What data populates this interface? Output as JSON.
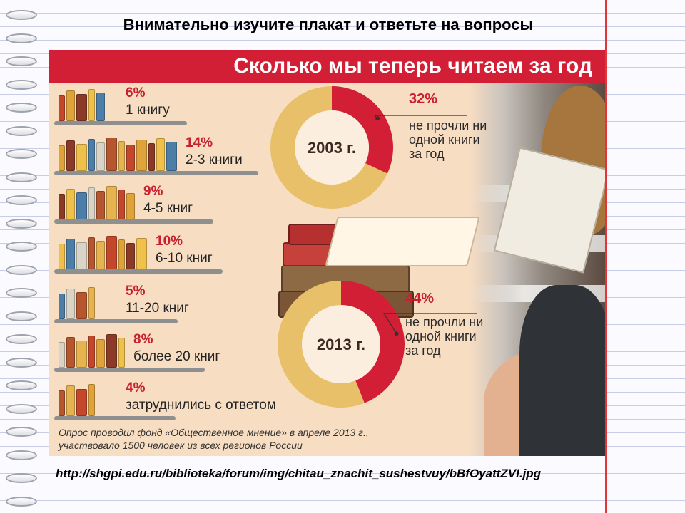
{
  "heading": "Внимательно изучите  плакат и ответьте  на вопросы",
  "poster": {
    "title": "Сколько мы теперь читаем за год",
    "footnote_line1": "Опрос проводил фонд «Общественное мнение» в апреле 2013 г.,",
    "footnote_line2": "участвовало 1500 человек из всех регионов России"
  },
  "url": "http://shgpi.edu.ru/biblioteka/forum/img/chitau_znachit_sushestvuy/bBfOyattZVI.jpg",
  "colors": {
    "accent_red": "#d21f35",
    "donut_gold": "#e8c06a",
    "poster_bg": "#f7ddc2"
  },
  "chart_data": [
    {
      "type": "bar",
      "categories": [
        "1 книгу",
        "2-3 книги",
        "4-5 книг",
        "6-10 книг",
        "11-20 книг",
        "более 20 книг",
        "затруднились с ответом"
      ],
      "values": [
        6,
        14,
        9,
        10,
        5,
        8,
        4
      ],
      "value_labels": [
        "6%",
        "14%",
        "9%",
        "10%",
        "5%",
        "8%",
        "4%"
      ],
      "orientation": "horizontal"
    },
    {
      "type": "pie",
      "center_label": "2003 г.",
      "slices": [
        {
          "label": "не прочли ни одной книги за год",
          "value": 32
        },
        {
          "label": "",
          "value": 68
        }
      ],
      "value_label": "32%",
      "note": "не прочли ни одной книги за год"
    },
    {
      "type": "pie",
      "center_label": "2013 г.",
      "slices": [
        {
          "label": "не прочли ни одной книги за год",
          "value": 44
        },
        {
          "label": "",
          "value": 56
        }
      ],
      "value_label": "44%",
      "note": "не прочли ни одной книги за год"
    }
  ]
}
